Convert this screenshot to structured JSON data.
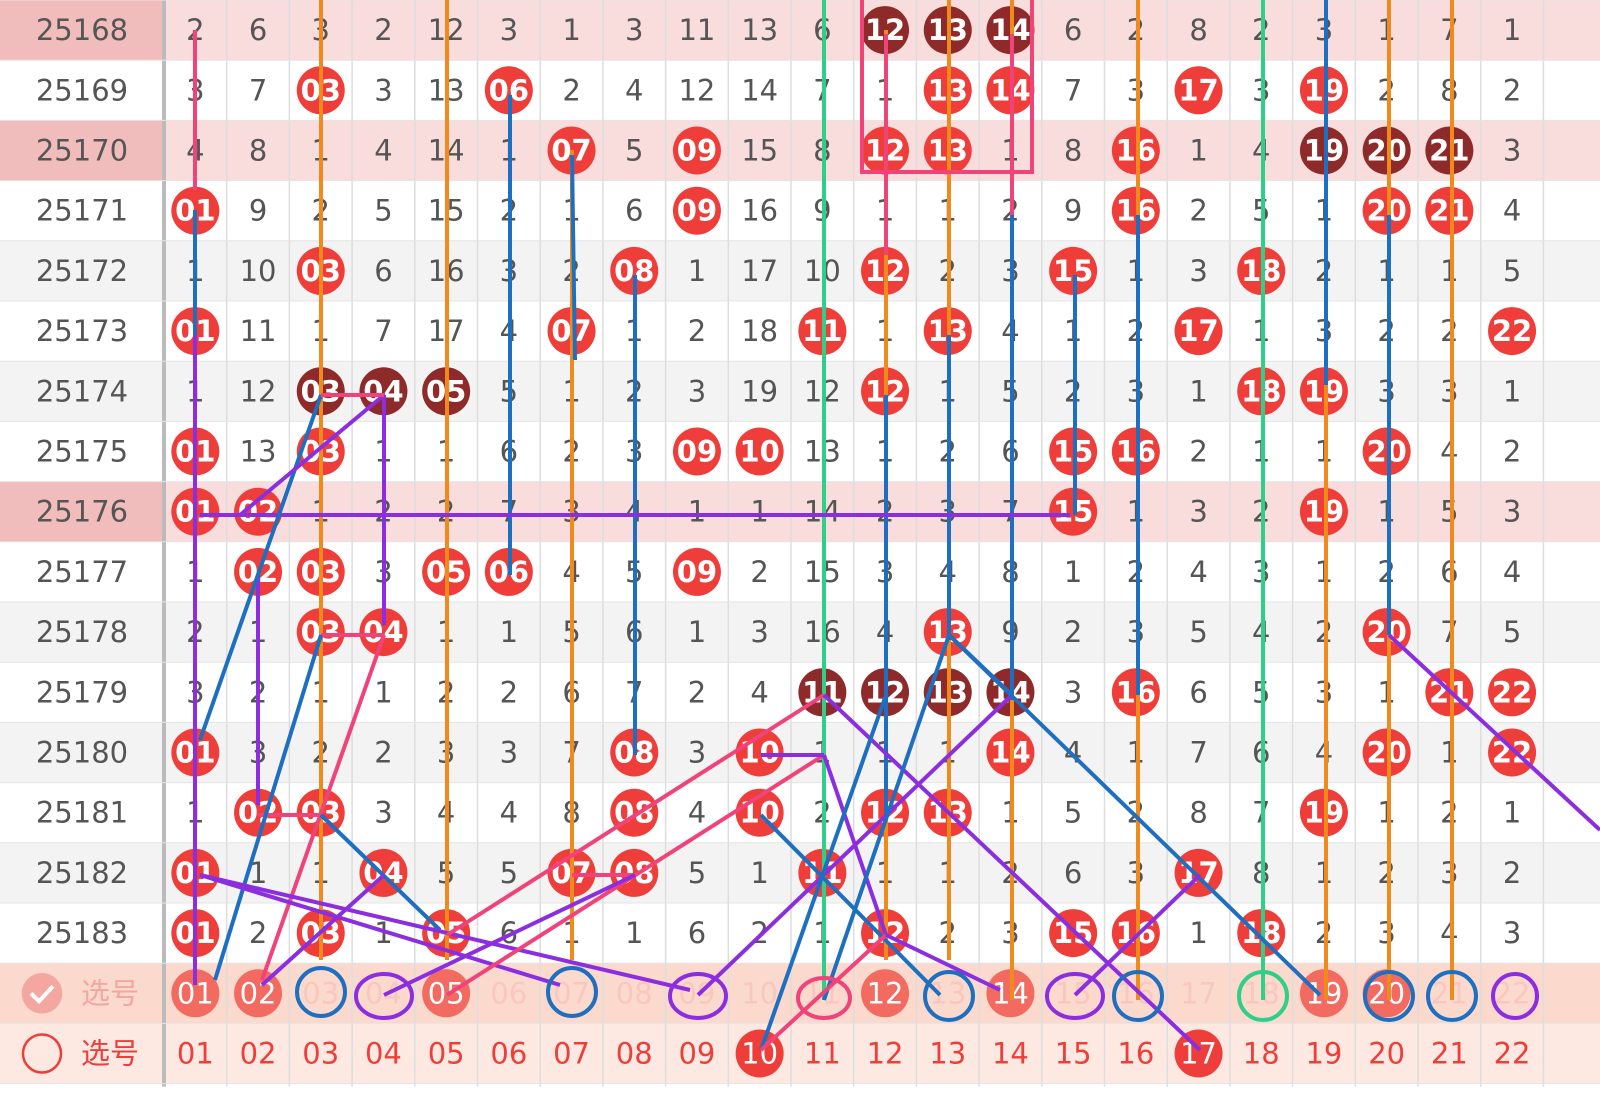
{
  "table": {
    "columns": [
      "01",
      "02",
      "03",
      "04",
      "05",
      "06",
      "07",
      "08",
      "09",
      "10",
      "11",
      "12",
      "13",
      "14",
      "15",
      "16",
      "17",
      "18",
      "19",
      "20",
      "21",
      "22"
    ],
    "rows": [
      {
        "issue": "25168",
        "highlight": true,
        "cells": [
          "2",
          "6",
          "3",
          "2",
          "12",
          "3",
          "1",
          "3",
          "11",
          "13",
          "6",
          "12",
          "13",
          "14",
          "6",
          "2",
          "8",
          "2",
          "3",
          "1",
          "7",
          "1"
        ]
      },
      {
        "issue": "25169",
        "highlight": false,
        "cells": [
          "3",
          "7",
          "03",
          "3",
          "13",
          "06",
          "2",
          "4",
          "12",
          "14",
          "7",
          "1",
          "13",
          "14",
          "7",
          "3",
          "17",
          "3",
          "19",
          "2",
          "8",
          "2"
        ]
      },
      {
        "issue": "25170",
        "highlight": true,
        "cells": [
          "4",
          "8",
          "1",
          "4",
          "14",
          "1",
          "07",
          "5",
          "09",
          "15",
          "8",
          "12",
          "13",
          "1",
          "8",
          "16",
          "1",
          "4",
          "19",
          "20",
          "21",
          "3"
        ]
      },
      {
        "issue": "25171",
        "highlight": false,
        "cells": [
          "01",
          "9",
          "2",
          "5",
          "15",
          "2",
          "1",
          "6",
          "09",
          "16",
          "9",
          "1",
          "1",
          "2",
          "9",
          "16",
          "2",
          "5",
          "1",
          "20",
          "21",
          "4"
        ]
      },
      {
        "issue": "25172",
        "highlight": false,
        "cells": [
          "1",
          "10",
          "03",
          "6",
          "16",
          "3",
          "2",
          "08",
          "1",
          "17",
          "10",
          "12",
          "2",
          "3",
          "15",
          "1",
          "3",
          "18",
          "2",
          "1",
          "1",
          "5"
        ]
      },
      {
        "issue": "25173",
        "highlight": false,
        "cells": [
          "01",
          "11",
          "1",
          "7",
          "17",
          "4",
          "07",
          "1",
          "2",
          "18",
          "11",
          "1",
          "13",
          "4",
          "1",
          "2",
          "17",
          "1",
          "3",
          "2",
          "2",
          "22"
        ]
      },
      {
        "issue": "25174",
        "highlight": false,
        "cells": [
          "1",
          "12",
          "03",
          "04",
          "05",
          "5",
          "1",
          "2",
          "3",
          "19",
          "12",
          "12",
          "1",
          "5",
          "2",
          "3",
          "1",
          "18",
          "19",
          "3",
          "3",
          "1"
        ]
      },
      {
        "issue": "25175",
        "highlight": false,
        "cells": [
          "01",
          "13",
          "03",
          "1",
          "1",
          "6",
          "2",
          "3",
          "09",
          "10",
          "13",
          "1",
          "2",
          "6",
          "15",
          "16",
          "2",
          "1",
          "1",
          "20",
          "4",
          "2"
        ]
      },
      {
        "issue": "25176",
        "highlight": true,
        "cells": [
          "01",
          "02",
          "1",
          "2",
          "2",
          "7",
          "3",
          "4",
          "1",
          "1",
          "14",
          "2",
          "3",
          "7",
          "15",
          "1",
          "3",
          "2",
          "19",
          "1",
          "5",
          "3"
        ]
      },
      {
        "issue": "25177",
        "highlight": false,
        "cells": [
          "1",
          "02",
          "03",
          "3",
          "05",
          "06",
          "4",
          "5",
          "09",
          "2",
          "15",
          "3",
          "4",
          "8",
          "1",
          "2",
          "4",
          "3",
          "1",
          "2",
          "6",
          "4"
        ]
      },
      {
        "issue": "25178",
        "highlight": false,
        "cells": [
          "2",
          "1",
          "03",
          "04",
          "1",
          "1",
          "5",
          "6",
          "1",
          "3",
          "16",
          "4",
          "13",
          "9",
          "2",
          "3",
          "5",
          "4",
          "2",
          "20",
          "7",
          "5"
        ]
      },
      {
        "issue": "25179",
        "highlight": false,
        "cells": [
          "3",
          "2",
          "1",
          "1",
          "2",
          "2",
          "6",
          "7",
          "2",
          "4",
          "11",
          "12",
          "13",
          "14",
          "3",
          "16",
          "6",
          "5",
          "3",
          "1",
          "21",
          "22"
        ]
      },
      {
        "issue": "25180",
        "highlight": false,
        "cells": [
          "01",
          "3",
          "2",
          "2",
          "3",
          "3",
          "7",
          "08",
          "3",
          "10",
          "1",
          "1",
          "1",
          "14",
          "4",
          "1",
          "7",
          "6",
          "4",
          "20",
          "1",
          "22"
        ]
      },
      {
        "issue": "25181",
        "highlight": false,
        "cells": [
          "1",
          "02",
          "03",
          "3",
          "4",
          "4",
          "8",
          "08",
          "4",
          "10",
          "2",
          "12",
          "13",
          "1",
          "5",
          "2",
          "8",
          "7",
          "19",
          "1",
          "2",
          "1"
        ]
      },
      {
        "issue": "25182",
        "highlight": false,
        "cells": [
          "01",
          "1",
          "1",
          "04",
          "5",
          "5",
          "07",
          "08",
          "5",
          "1",
          "11",
          "1",
          "1",
          "2",
          "6",
          "3",
          "17",
          "8",
          "1",
          "2",
          "3",
          "2"
        ]
      },
      {
        "issue": "25183",
        "highlight": false,
        "cells": [
          "01",
          "2",
          "03",
          "1",
          "05",
          "6",
          "1",
          "1",
          "6",
          "2",
          "1",
          "12",
          "2",
          "3",
          "15",
          "16",
          "1",
          "18",
          "2",
          "3",
          "4",
          "3"
        ]
      }
    ]
  },
  "select_rows": [
    {
      "label": "选号",
      "checked": true,
      "balls": [
        "01",
        "02",
        "05",
        "12",
        "14",
        "19",
        "20"
      ]
    },
    {
      "label": "选号",
      "checked": false,
      "balls": [
        "10",
        "17"
      ]
    }
  ]
}
